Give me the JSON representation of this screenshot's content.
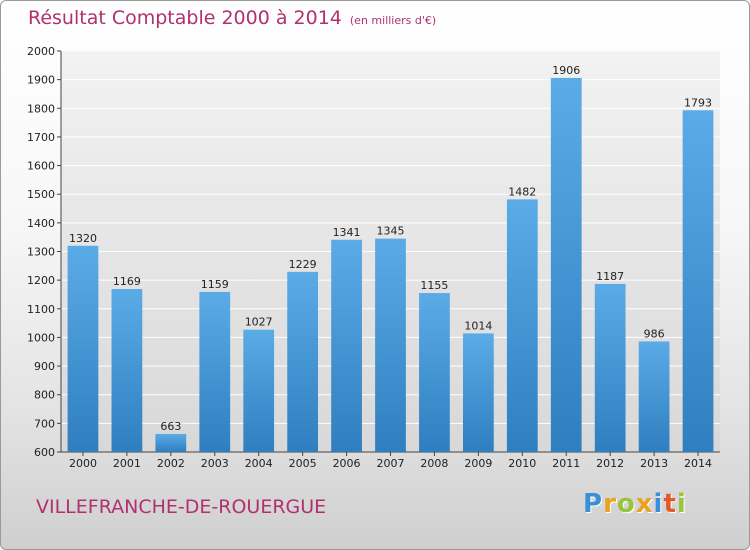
{
  "chart_data": {
    "type": "bar",
    "title": "Résultat Comptable 2000 à 2014",
    "subtitle": "(en milliers d'€)",
    "xlabel": "",
    "ylabel": "",
    "categories": [
      "2000",
      "2001",
      "2002",
      "2003",
      "2004",
      "2005",
      "2006",
      "2007",
      "2008",
      "2009",
      "2010",
      "2011",
      "2012",
      "2013",
      "2014"
    ],
    "values": [
      1320,
      1169,
      663,
      1159,
      1027,
      1229,
      1341,
      1345,
      1155,
      1014,
      1482,
      1906,
      1187,
      986,
      1793
    ],
    "ylim": [
      600,
      2000
    ],
    "yticks": [
      "600",
      "700",
      "800",
      "900",
      "1000",
      "1100",
      "1200",
      "1300",
      "1400",
      "1500",
      "1600",
      "1700",
      "1800",
      "1900",
      "2000"
    ],
    "grid": true,
    "legend": "none",
    "bar_color_top": "#5aabe6",
    "bar_color_bottom": "#2f7fc0"
  },
  "footer": {
    "place": "VILLEFRANCHE-DE-ROUERGUE"
  },
  "logo": {
    "letters": [
      "P",
      "r",
      "o",
      "x",
      "i",
      "t",
      "i"
    ],
    "colors": [
      "#3b8fd6",
      "#e8a320",
      "#9bc43c",
      "#e8a320",
      "#3b8fd6",
      "#e05a2a",
      "#9bc43c"
    ]
  }
}
